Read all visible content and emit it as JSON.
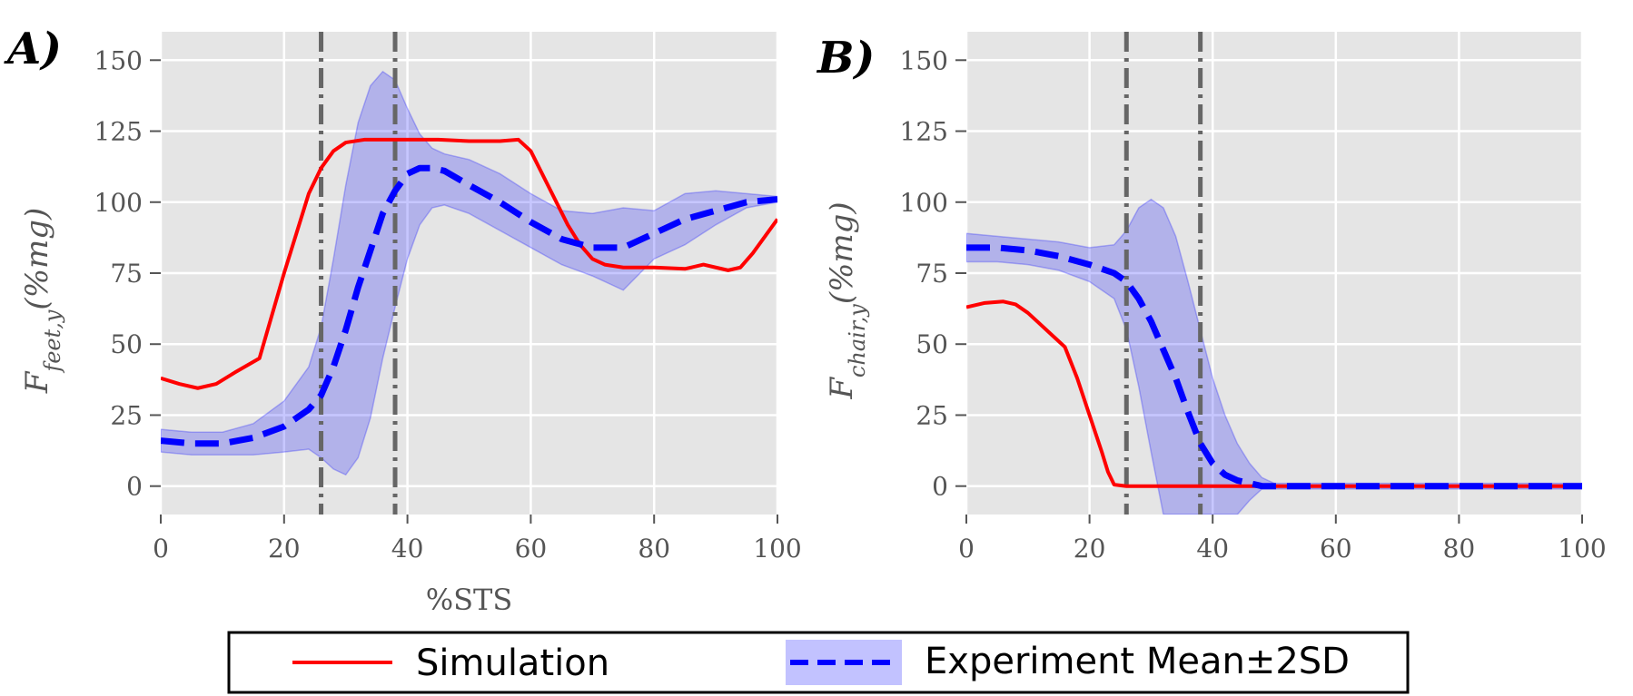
{
  "chart_data": [
    {
      "type": "line",
      "panel_label": "A)",
      "ylabel": {
        "main": "F",
        "sub": "feet,y",
        "rest": "(%mg)"
      },
      "xlabel": "%STS",
      "xlim": [
        0,
        100
      ],
      "ylim": [
        -10,
        160
      ],
      "xticks": [
        "0",
        "20",
        "40",
        "60",
        "80",
        "100"
      ],
      "yticks": [
        "0",
        "25",
        "50",
        "75",
        "100",
        "125",
        "150"
      ],
      "grid": true,
      "vlines": [
        26,
        38
      ],
      "series": [
        {
          "name": "Simulation",
          "color": "#ff0000",
          "style": "solid",
          "x": [
            0,
            3,
            6,
            9,
            12,
            16,
            20,
            24,
            26,
            28,
            30,
            33,
            36,
            40,
            45,
            50,
            55,
            58,
            60,
            63,
            66,
            68,
            70,
            72,
            75,
            80,
            85,
            88,
            90,
            92,
            94,
            96,
            98,
            100
          ],
          "y": [
            38,
            36,
            34.5,
            36,
            40,
            45,
            75,
            103,
            112,
            118,
            121,
            122,
            122,
            122,
            122,
            121.5,
            121.5,
            122,
            118,
            105,
            92,
            85,
            80,
            78,
            77,
            77,
            76.5,
            78,
            77,
            76,
            77,
            82,
            88,
            94
          ]
        },
        {
          "name": "Experiment Mean±2SD",
          "color": "#0000ff",
          "style": "dashed",
          "x": [
            0,
            5,
            10,
            15,
            20,
            24,
            26,
            28,
            30,
            32,
            34,
            36,
            38,
            40,
            42,
            44,
            46,
            50,
            55,
            60,
            65,
            70,
            75,
            80,
            85,
            90,
            95,
            100
          ],
          "y": [
            16,
            15,
            15,
            17,
            21,
            27,
            32,
            42,
            55,
            70,
            83,
            96,
            104,
            110,
            112,
            112,
            111,
            106,
            100,
            93,
            87,
            84,
            84,
            89,
            94,
            97,
            100,
            101
          ],
          "band_lower": [
            12,
            11,
            11,
            11,
            12,
            13,
            10,
            6,
            4,
            10,
            24,
            45,
            63,
            80,
            92,
            98,
            99,
            96,
            90,
            84,
            78,
            74,
            69,
            80,
            85,
            92,
            98,
            100
          ],
          "band_upper": [
            20,
            19,
            19,
            22,
            30,
            42,
            56,
            80,
            106,
            128,
            141,
            146,
            143,
            133,
            124,
            119,
            117,
            115,
            110,
            103,
            97,
            96,
            98,
            97,
            103,
            104,
            103,
            102
          ]
        }
      ]
    },
    {
      "type": "line",
      "panel_label": "B)",
      "ylabel": {
        "main": "F",
        "sub": "chair,y",
        "rest": "(%mg)"
      },
      "xlabel": "",
      "xlim": [
        0,
        100
      ],
      "ylim": [
        -10,
        160
      ],
      "xticks": [
        "0",
        "20",
        "40",
        "60",
        "80",
        "100"
      ],
      "yticks": [
        "0",
        "25",
        "50",
        "75",
        "100",
        "125",
        "150"
      ],
      "grid": true,
      "vlines": [
        26,
        38
      ],
      "series": [
        {
          "name": "Simulation",
          "color": "#ff0000",
          "style": "solid",
          "x": [
            0,
            3,
            6,
            8,
            10,
            12,
            14,
            16,
            18,
            20,
            22,
            23,
            24,
            26,
            30,
            40,
            50,
            60,
            70,
            80,
            90,
            100
          ],
          "y": [
            63,
            64.5,
            65,
            64,
            61,
            57,
            53,
            49,
            38,
            25,
            12,
            5,
            0.5,
            0,
            0,
            0,
            0,
            0,
            0,
            0,
            0,
            0
          ]
        },
        {
          "name": "Experiment Mean±2SD",
          "color": "#0000ff",
          "style": "dashed",
          "x": [
            0,
            5,
            10,
            15,
            20,
            24,
            26,
            28,
            30,
            32,
            34,
            36,
            38,
            40,
            42,
            44,
            46,
            48,
            50,
            60,
            70,
            80,
            90,
            100
          ],
          "y": [
            84,
            84,
            83,
            81,
            78,
            75,
            72,
            66,
            58,
            48,
            38,
            26,
            15,
            8,
            4,
            2,
            1,
            0,
            0,
            0,
            0,
            0,
            0,
            0
          ],
          "band_lower": [
            79,
            79,
            78,
            76,
            72,
            66,
            55,
            35,
            12,
            -10,
            -10,
            -10,
            -10,
            -10,
            -10,
            -10,
            -5,
            -1,
            -1,
            -1,
            -1,
            -1,
            -1,
            -1
          ],
          "band_upper": [
            89,
            88,
            87,
            86,
            84,
            85,
            90,
            98,
            101,
            98,
            88,
            72,
            55,
            38,
            25,
            15,
            8,
            3,
            1,
            1,
            1,
            1,
            1,
            1
          ]
        }
      ]
    }
  ],
  "legend": {
    "entries": [
      {
        "label": "Simulation",
        "color": "#ff0000",
        "style": "solid"
      },
      {
        "label": "Experiment Mean±2SD",
        "color": "#0000ff",
        "style": "dashed",
        "band_color": "#9999ff"
      }
    ],
    "placement": "bottom-center"
  }
}
